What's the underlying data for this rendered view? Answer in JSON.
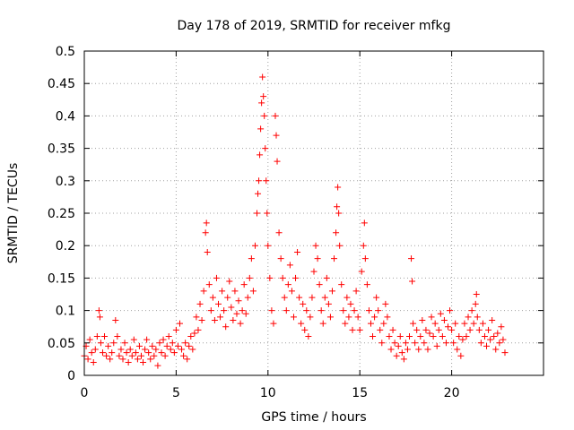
{
  "chart_data": {
    "type": "scatter",
    "title": "Day 178 of 2019, SRMTID for receiver mfkg",
    "xlabel": "GPS time / hours",
    "ylabel": "SRMTID / TECUs",
    "xlim": [
      0,
      25
    ],
    "ylim": [
      0,
      0.5
    ],
    "x_ticks": [
      0,
      5,
      10,
      15,
      20
    ],
    "x_tick_labels": [
      "0",
      "5",
      "10",
      "15",
      "20"
    ],
    "y_ticks": [
      0,
      0.05,
      0.1,
      0.15,
      0.2,
      0.25,
      0.3,
      0.35,
      0.4,
      0.45,
      0.5
    ],
    "y_tick_labels": [
      "0",
      "0.05",
      "0.1",
      "0.15",
      "0.2",
      "0.25",
      "0.3",
      "0.35",
      "0.4",
      "0.45",
      "0.5"
    ],
    "grid": true,
    "marker": "+",
    "color": "#ff0000",
    "series": [
      {
        "name": "SRMTID",
        "points": [
          [
            0.0,
            0.03
          ],
          [
            0.1,
            0.045
          ],
          [
            0.2,
            0.025
          ],
          [
            0.3,
            0.055
          ],
          [
            0.4,
            0.035
          ],
          [
            0.5,
            0.02
          ],
          [
            0.6,
            0.04
          ],
          [
            0.7,
            0.06
          ],
          [
            0.8,
            0.1
          ],
          [
            0.85,
            0.09
          ],
          [
            0.9,
            0.05
          ],
          [
            1.0,
            0.035
          ],
          [
            1.1,
            0.06
          ],
          [
            1.2,
            0.03
          ],
          [
            1.3,
            0.045
          ],
          [
            1.4,
            0.025
          ],
          [
            1.5,
            0.035
          ],
          [
            1.6,
            0.05
          ],
          [
            1.7,
            0.085
          ],
          [
            1.8,
            0.06
          ],
          [
            1.9,
            0.03
          ],
          [
            2.0,
            0.04
          ],
          [
            2.1,
            0.025
          ],
          [
            2.2,
            0.05
          ],
          [
            2.3,
            0.035
          ],
          [
            2.4,
            0.02
          ],
          [
            2.5,
            0.04
          ],
          [
            2.6,
            0.03
          ],
          [
            2.7,
            0.055
          ],
          [
            2.8,
            0.035
          ],
          [
            2.9,
            0.025
          ],
          [
            3.0,
            0.045
          ],
          [
            3.1,
            0.03
          ],
          [
            3.2,
            0.02
          ],
          [
            3.3,
            0.04
          ],
          [
            3.4,
            0.055
          ],
          [
            3.5,
            0.035
          ],
          [
            3.6,
            0.025
          ],
          [
            3.7,
            0.045
          ],
          [
            3.8,
            0.03
          ],
          [
            3.9,
            0.04
          ],
          [
            4.0,
            0.015
          ],
          [
            4.1,
            0.05
          ],
          [
            4.2,
            0.035
          ],
          [
            4.3,
            0.055
          ],
          [
            4.4,
            0.03
          ],
          [
            4.5,
            0.045
          ],
          [
            4.6,
            0.06
          ],
          [
            4.7,
            0.04
          ],
          [
            4.8,
            0.05
          ],
          [
            4.9,
            0.035
          ],
          [
            5.0,
            0.07
          ],
          [
            5.1,
            0.045
          ],
          [
            5.2,
            0.08
          ],
          [
            5.3,
            0.04
          ],
          [
            5.4,
            0.03
          ],
          [
            5.5,
            0.05
          ],
          [
            5.6,
            0.025
          ],
          [
            5.7,
            0.045
          ],
          [
            5.8,
            0.06
          ],
          [
            5.9,
            0.04
          ],
          [
            6.0,
            0.065
          ],
          [
            6.1,
            0.09
          ],
          [
            6.2,
            0.07
          ],
          [
            6.3,
            0.11
          ],
          [
            6.4,
            0.085
          ],
          [
            6.5,
            0.13
          ],
          [
            6.6,
            0.22
          ],
          [
            6.65,
            0.235
          ],
          [
            6.7,
            0.19
          ],
          [
            6.8,
            0.14
          ],
          [
            6.9,
            0.1
          ],
          [
            7.0,
            0.12
          ],
          [
            7.1,
            0.085
          ],
          [
            7.2,
            0.15
          ],
          [
            7.3,
            0.11
          ],
          [
            7.4,
            0.09
          ],
          [
            7.5,
            0.13
          ],
          [
            7.6,
            0.1
          ],
          [
            7.7,
            0.075
          ],
          [
            7.8,
            0.12
          ],
          [
            7.9,
            0.145
          ],
          [
            8.0,
            0.105
          ],
          [
            8.1,
            0.085
          ],
          [
            8.2,
            0.13
          ],
          [
            8.3,
            0.095
          ],
          [
            8.4,
            0.115
          ],
          [
            8.5,
            0.08
          ],
          [
            8.6,
            0.1
          ],
          [
            8.7,
            0.14
          ],
          [
            8.8,
            0.095
          ],
          [
            8.9,
            0.12
          ],
          [
            9.0,
            0.15
          ],
          [
            9.1,
            0.18
          ],
          [
            9.2,
            0.13
          ],
          [
            9.3,
            0.2
          ],
          [
            9.4,
            0.25
          ],
          [
            9.45,
            0.28
          ],
          [
            9.5,
            0.3
          ],
          [
            9.55,
            0.34
          ],
          [
            9.6,
            0.38
          ],
          [
            9.65,
            0.42
          ],
          [
            9.7,
            0.46
          ],
          [
            9.75,
            0.43
          ],
          [
            9.8,
            0.4
          ],
          [
            9.85,
            0.35
          ],
          [
            9.9,
            0.3
          ],
          [
            9.95,
            0.25
          ],
          [
            10.0,
            0.2
          ],
          [
            10.1,
            0.15
          ],
          [
            10.2,
            0.1
          ],
          [
            10.3,
            0.08
          ],
          [
            10.4,
            0.4
          ],
          [
            10.45,
            0.37
          ],
          [
            10.5,
            0.33
          ],
          [
            10.6,
            0.22
          ],
          [
            10.7,
            0.18
          ],
          [
            10.8,
            0.15
          ],
          [
            10.9,
            0.12
          ],
          [
            11.0,
            0.1
          ],
          [
            11.1,
            0.14
          ],
          [
            11.2,
            0.17
          ],
          [
            11.3,
            0.13
          ],
          [
            11.4,
            0.09
          ],
          [
            11.5,
            0.15
          ],
          [
            11.6,
            0.19
          ],
          [
            11.7,
            0.12
          ],
          [
            11.8,
            0.08
          ],
          [
            11.9,
            0.11
          ],
          [
            12.0,
            0.07
          ],
          [
            12.1,
            0.1
          ],
          [
            12.2,
            0.06
          ],
          [
            12.3,
            0.09
          ],
          [
            12.4,
            0.12
          ],
          [
            12.5,
            0.16
          ],
          [
            12.6,
            0.2
          ],
          [
            12.7,
            0.18
          ],
          [
            12.8,
            0.14
          ],
          [
            12.9,
            0.1
          ],
          [
            13.0,
            0.08
          ],
          [
            13.1,
            0.12
          ],
          [
            13.2,
            0.15
          ],
          [
            13.3,
            0.11
          ],
          [
            13.4,
            0.09
          ],
          [
            13.5,
            0.13
          ],
          [
            13.6,
            0.18
          ],
          [
            13.7,
            0.22
          ],
          [
            13.75,
            0.26
          ],
          [
            13.8,
            0.29
          ],
          [
            13.85,
            0.25
          ],
          [
            13.9,
            0.2
          ],
          [
            14.0,
            0.14
          ],
          [
            14.1,
            0.1
          ],
          [
            14.2,
            0.08
          ],
          [
            14.3,
            0.12
          ],
          [
            14.4,
            0.09
          ],
          [
            14.5,
            0.11
          ],
          [
            14.6,
            0.07
          ],
          [
            14.7,
            0.1
          ],
          [
            14.8,
            0.13
          ],
          [
            14.9,
            0.09
          ],
          [
            15.0,
            0.07
          ],
          [
            15.1,
            0.16
          ],
          [
            15.2,
            0.2
          ],
          [
            15.25,
            0.235
          ],
          [
            15.3,
            0.18
          ],
          [
            15.4,
            0.14
          ],
          [
            15.5,
            0.1
          ],
          [
            15.6,
            0.08
          ],
          [
            15.7,
            0.06
          ],
          [
            15.8,
            0.09
          ],
          [
            15.9,
            0.12
          ],
          [
            16.0,
            0.1
          ],
          [
            16.1,
            0.07
          ],
          [
            16.2,
            0.05
          ],
          [
            16.3,
            0.08
          ],
          [
            16.4,
            0.11
          ],
          [
            16.5,
            0.09
          ],
          [
            16.6,
            0.06
          ],
          [
            16.7,
            0.04
          ],
          [
            16.8,
            0.07
          ],
          [
            16.9,
            0.05
          ],
          [
            17.0,
            0.03
          ],
          [
            17.1,
            0.045
          ],
          [
            17.2,
            0.06
          ],
          [
            17.3,
            0.035
          ],
          [
            17.4,
            0.025
          ],
          [
            17.5,
            0.05
          ],
          [
            17.6,
            0.04
          ],
          [
            17.7,
            0.06
          ],
          [
            17.8,
            0.18
          ],
          [
            17.85,
            0.145
          ],
          [
            17.9,
            0.08
          ],
          [
            18.0,
            0.05
          ],
          [
            18.1,
            0.07
          ],
          [
            18.2,
            0.04
          ],
          [
            18.3,
            0.06
          ],
          [
            18.4,
            0.085
          ],
          [
            18.5,
            0.05
          ],
          [
            18.6,
            0.07
          ],
          [
            18.7,
            0.04
          ],
          [
            18.8,
            0.065
          ],
          [
            18.9,
            0.09
          ],
          [
            19.0,
            0.06
          ],
          [
            19.1,
            0.08
          ],
          [
            19.2,
            0.045
          ],
          [
            19.3,
            0.07
          ],
          [
            19.4,
            0.095
          ],
          [
            19.5,
            0.06
          ],
          [
            19.6,
            0.085
          ],
          [
            19.7,
            0.05
          ],
          [
            19.8,
            0.075
          ],
          [
            19.9,
            0.1
          ],
          [
            20.0,
            0.07
          ],
          [
            20.1,
            0.05
          ],
          [
            20.2,
            0.08
          ],
          [
            20.3,
            0.04
          ],
          [
            20.4,
            0.06
          ],
          [
            20.5,
            0.03
          ],
          [
            20.6,
            0.055
          ],
          [
            20.7,
            0.08
          ],
          [
            20.8,
            0.06
          ],
          [
            20.9,
            0.09
          ],
          [
            21.0,
            0.07
          ],
          [
            21.1,
            0.1
          ],
          [
            21.2,
            0.08
          ],
          [
            21.3,
            0.11
          ],
          [
            21.35,
            0.125
          ],
          [
            21.4,
            0.09
          ],
          [
            21.5,
            0.07
          ],
          [
            21.6,
            0.05
          ],
          [
            21.7,
            0.08
          ],
          [
            21.8,
            0.06
          ],
          [
            21.9,
            0.045
          ],
          [
            22.0,
            0.07
          ],
          [
            22.1,
            0.055
          ],
          [
            22.2,
            0.085
          ],
          [
            22.3,
            0.06
          ],
          [
            22.4,
            0.04
          ],
          [
            22.5,
            0.065
          ],
          [
            22.6,
            0.05
          ],
          [
            22.7,
            0.075
          ],
          [
            22.8,
            0.055
          ],
          [
            22.9,
            0.035
          ]
        ]
      }
    ]
  }
}
